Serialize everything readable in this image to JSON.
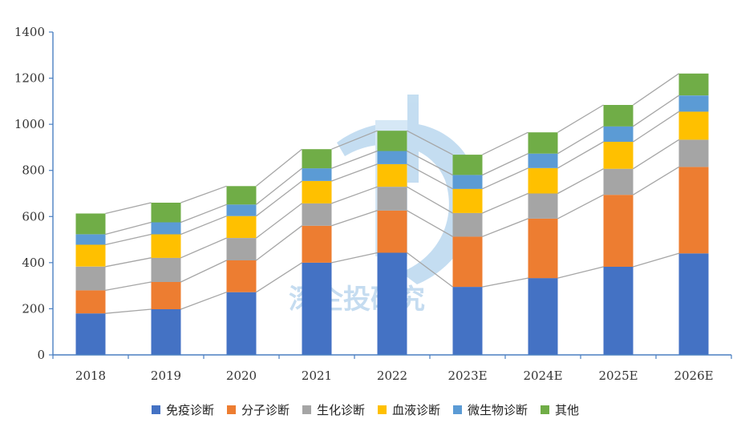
{
  "chart_data": {
    "type": "bar",
    "stacked": true,
    "categories": [
      "2018",
      "2019",
      "2020",
      "2021",
      "2022",
      "2023E",
      "2024E",
      "2025E",
      "2026E"
    ],
    "ylim": [
      0,
      1400
    ],
    "yticks": [
      0,
      200,
      400,
      600,
      800,
      1000,
      1200,
      1400
    ],
    "grid": false,
    "legend_position": "bottom",
    "connector_lines": true,
    "series": [
      {
        "name": "免疫诊断",
        "color": "#4472c4",
        "values": [
          180,
          198,
          272,
          400,
          443,
          295,
          333,
          382,
          440
        ]
      },
      {
        "name": "分子诊断",
        "color": "#ed7d31",
        "values": [
          100,
          118,
          138,
          160,
          183,
          218,
          258,
          312,
          375
        ]
      },
      {
        "name": "生化诊断",
        "color": "#a5a5a5",
        "values": [
          103,
          105,
          97,
          97,
          103,
          102,
          109,
          113,
          118
        ]
      },
      {
        "name": "血液诊断",
        "color": "#ffc000",
        "values": [
          95,
          102,
          95,
          97,
          98,
          105,
          110,
          117,
          122
        ]
      },
      {
        "name": "微生物诊断",
        "color": "#5b9bd5",
        "values": [
          45,
          52,
          50,
          55,
          57,
          60,
          63,
          67,
          70
        ]
      },
      {
        "name": "其他",
        "color": "#70ad47",
        "values": [
          90,
          85,
          80,
          83,
          88,
          88,
          92,
          93,
          95
        ]
      }
    ]
  },
  "watermark": {
    "text": "深企投研究"
  }
}
